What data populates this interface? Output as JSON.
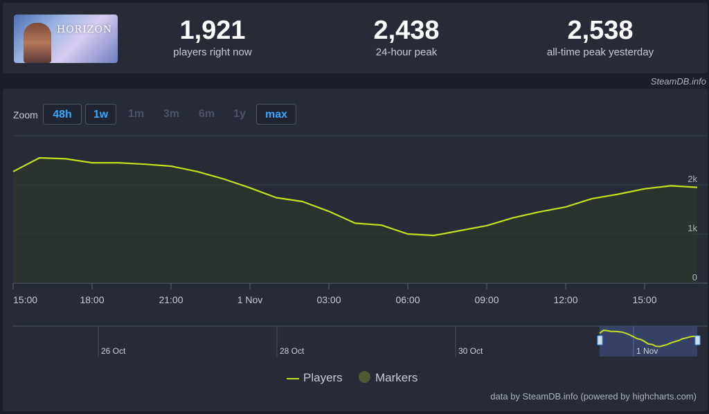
{
  "stats": [
    {
      "value": "1,921",
      "label": "players right now"
    },
    {
      "value": "2,438",
      "label": "24-hour peak"
    },
    {
      "value": "2,538",
      "label": "all-time peak yesterday"
    }
  ],
  "game": {
    "logo_text": "HORIZON"
  },
  "credit_top": "SteamDB.info",
  "zoom": {
    "label": "Zoom",
    "buttons": [
      {
        "label": "48h",
        "active": true
      },
      {
        "label": "1w",
        "active": true
      },
      {
        "label": "1m",
        "active": false
      },
      {
        "label": "3m",
        "active": false
      },
      {
        "label": "6m",
        "active": false
      },
      {
        "label": "1y",
        "active": false
      },
      {
        "label": "max",
        "active": true
      }
    ]
  },
  "chart_data": {
    "type": "area",
    "series": [
      {
        "name": "Players",
        "color": "#c5e01f",
        "x_hours": [
          0,
          1,
          2,
          3,
          4,
          5,
          6,
          7,
          8,
          9,
          10,
          11,
          12,
          13,
          14,
          15,
          16,
          17,
          18,
          19,
          20,
          21,
          22,
          23,
          24,
          25,
          26
        ],
        "values": [
          2270,
          2550,
          2530,
          2450,
          2450,
          2420,
          2380,
          2270,
          2120,
          1940,
          1740,
          1660,
          1460,
          1220,
          1180,
          1000,
          970,
          1070,
          1170,
          1330,
          1450,
          1550,
          1720,
          1810,
          1920,
          1980,
          1950
        ]
      }
    ],
    "x_ticks": [
      "15:00",
      "18:00",
      "21:00",
      "1 Nov",
      "03:00",
      "06:00",
      "09:00",
      "12:00",
      "15:00"
    ],
    "y_ticks": [
      "0",
      "1k",
      "2k"
    ],
    "ylim": [
      0,
      3000
    ],
    "grid": true,
    "legend": [
      {
        "name": "Players",
        "color": "#c5e01f"
      },
      {
        "name": "Markers",
        "color": "#4d5a32"
      }
    ],
    "navigator": {
      "labels": [
        "26 Oct",
        "28 Oct",
        "30 Oct",
        "1 Nov"
      ]
    }
  },
  "credit_bottom": "data by SteamDB.info (powered by highcharts.com)"
}
